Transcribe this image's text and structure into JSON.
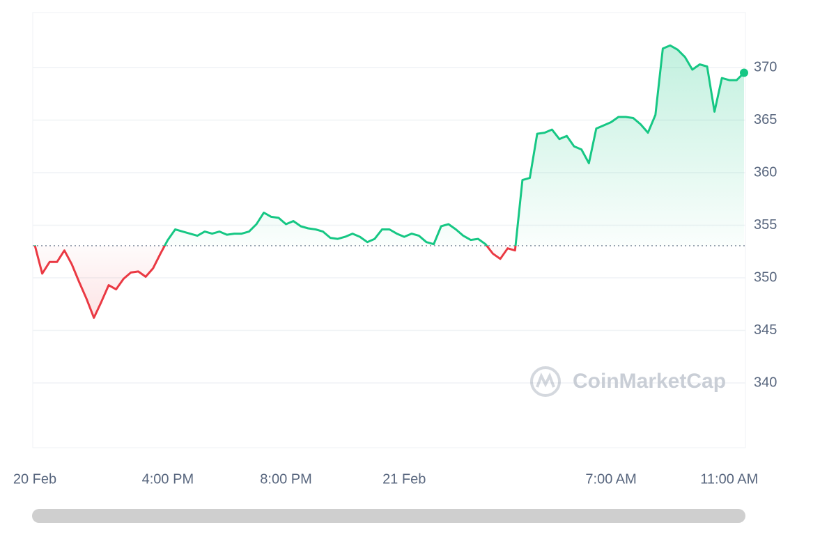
{
  "chart_data": {
    "type": "line",
    "categories": [
      "20 Feb",
      null,
      null,
      null,
      null,
      null,
      null,
      null,
      null,
      null,
      null,
      null,
      null,
      null,
      null,
      null,
      null,
      null,
      "4:00 PM",
      null,
      null,
      null,
      null,
      null,
      null,
      null,
      null,
      null,
      null,
      null,
      null,
      null,
      null,
      null,
      "8:00 PM",
      null,
      null,
      null,
      null,
      null,
      null,
      null,
      null,
      null,
      null,
      null,
      null,
      null,
      null,
      null,
      "21 Feb",
      null,
      null,
      null,
      null,
      null,
      null,
      null,
      null,
      null,
      null,
      null,
      null,
      null,
      null,
      null,
      null,
      null,
      null,
      null,
      null,
      null,
      null,
      null,
      null,
      null,
      null,
      null,
      "7:00 AM",
      null,
      null,
      null,
      null,
      null,
      null,
      null,
      null,
      null,
      null,
      null,
      null,
      null,
      null,
      null,
      "11:00 AM",
      null,
      null
    ],
    "values": [
      353.1,
      350.4,
      351.5,
      351.5,
      352.6,
      351.3,
      349.6,
      348.0,
      346.2,
      347.7,
      349.3,
      348.9,
      349.9,
      350.5,
      350.6,
      350.1,
      350.9,
      352.3,
      353.6,
      354.6,
      354.4,
      354.2,
      354.0,
      354.4,
      354.2,
      354.4,
      354.1,
      354.2,
      354.2,
      354.4,
      355.1,
      356.2,
      355.8,
      355.7,
      355.1,
      355.4,
      354.9,
      354.7,
      354.6,
      354.4,
      353.8,
      353.7,
      353.9,
      354.2,
      353.9,
      353.4,
      353.7,
      354.6,
      354.6,
      354.2,
      353.9,
      354.2,
      354.0,
      353.4,
      353.2,
      354.9,
      355.1,
      354.6,
      354.0,
      353.6,
      353.7,
      353.2,
      352.3,
      351.8,
      352.8,
      352.6,
      359.3,
      359.5,
      363.7,
      363.8,
      364.1,
      363.2,
      363.5,
      362.5,
      362.2,
      360.9,
      364.2,
      364.5,
      364.8,
      365.3,
      365.3,
      365.2,
      364.6,
      363.8,
      365.5,
      371.8,
      372.1,
      371.7,
      371.0,
      369.8,
      370.3,
      370.1,
      365.8,
      369.0,
      368.8,
      368.8,
      369.5
    ],
    "up_color": "#16c784",
    "down_color": "#ea3943",
    "baseline": 353.05,
    "ylim": [
      333.84,
      375.1
    ],
    "yticks": [
      340,
      345,
      350,
      355,
      360,
      365,
      370
    ],
    "grid": true,
    "watermark": "CoinMarketCap"
  }
}
